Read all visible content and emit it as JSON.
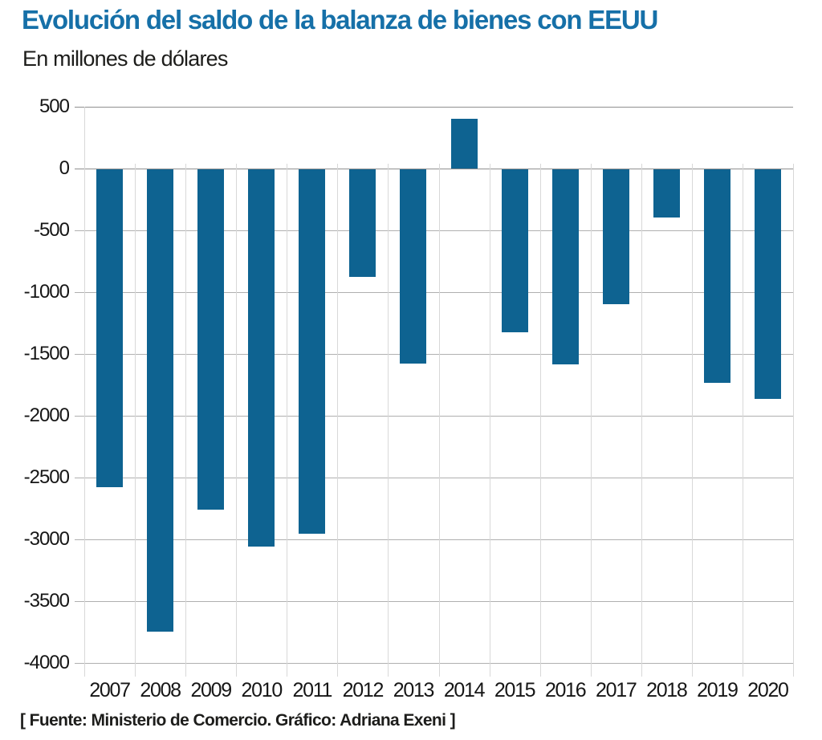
{
  "header": {
    "title": "Evolución del saldo de la balanza de bienes con EEUU",
    "subtitle": "En millones de dólares"
  },
  "chart_data": {
    "type": "bar",
    "title": "Evolución del saldo de la balanza de bienes con EEUU",
    "subtitle": "En millones de dólares",
    "unit": "millones de dólares",
    "categories": [
      "2007",
      "2008",
      "2009",
      "2010",
      "2011",
      "2012",
      "2013",
      "2014",
      "2015",
      "2016",
      "2017",
      "2018",
      "2019",
      "2020"
    ],
    "values": [
      -2570,
      -3740,
      -2750,
      -3050,
      -2950,
      -870,
      -1570,
      400,
      -1320,
      -1580,
      -1090,
      -390,
      -1730,
      -1860
    ],
    "ylim": [
      -4000,
      500
    ],
    "yticks": [
      500,
      0,
      -500,
      -1000,
      -1500,
      -2000,
      -2500,
      -3000,
      -3500,
      -4000
    ],
    "grid": true,
    "legend": false,
    "xlabel": "",
    "ylabel": "",
    "bar_color": "#0e6391",
    "gridline_color": "#b0b0b0",
    "minor_grid_color": "#d8d8d8"
  },
  "footer": {
    "source": "[ Fuente: Ministerio de Comercio. Gráfico: Adriana Exeni ]"
  },
  "colors": {
    "title": "#1670a8",
    "text": "#1d1d1b",
    "background": "#ffffff"
  }
}
